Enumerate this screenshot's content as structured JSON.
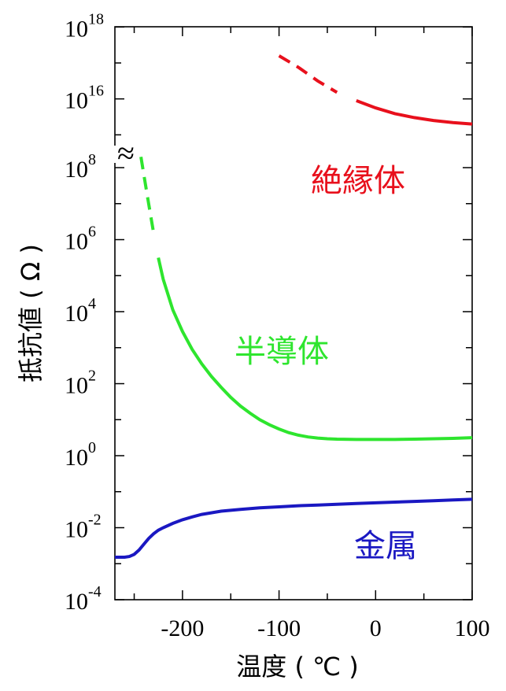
{
  "chart_data": {
    "type": "line",
    "title": "",
    "xlabel": "温度 ( ℃ )",
    "ylabel": "抵抗値 ( Ω )",
    "xlim": [
      -270,
      100
    ],
    "y_scale": "log",
    "x_ticks": [
      -200,
      -100,
      0,
      100
    ],
    "x_tick_labels": [
      "-200",
      "-100",
      "0",
      "100"
    ],
    "y_tick_exponents": [
      -4,
      -2,
      0,
      2,
      4,
      6,
      8,
      16,
      18
    ],
    "y_tick_base": "10",
    "y_axis_break": "≈",
    "grid": false,
    "series": [
      {
        "name": "絶縁体",
        "color": "#e8101c",
        "x": [
          -100,
          -80,
          -60,
          -40,
          -20,
          0,
          20,
          40,
          60,
          80,
          100
        ],
        "log10_y": [
          17.2,
          16.88,
          16.5,
          16.18,
          15.95,
          15.75,
          15.59,
          15.48,
          15.4,
          15.34,
          15.3
        ],
        "dashed_segment": [
          -100,
          -35
        ]
      },
      {
        "name": "半導体",
        "color": "#2ee52e",
        "x": [
          -243,
          -240,
          -235,
          -230,
          -225,
          -220,
          -210,
          -200,
          -190,
          -180,
          -170,
          -160,
          -150,
          -140,
          -130,
          -120,
          -110,
          -100,
          -90,
          -80,
          -70,
          -60,
          -50,
          -40,
          -20,
          0,
          20,
          40,
          60,
          80,
          100
        ],
        "log10_y": [
          8.3,
          7.8,
          7.0,
          6.2,
          5.5,
          4.9,
          4.05,
          3.45,
          2.95,
          2.55,
          2.2,
          1.9,
          1.62,
          1.38,
          1.18,
          1.0,
          0.86,
          0.74,
          0.64,
          0.57,
          0.52,
          0.49,
          0.47,
          0.46,
          0.45,
          0.45,
          0.45,
          0.46,
          0.47,
          0.48,
          0.5
        ],
        "dashed_segment": [
          -243,
          -228
        ]
      },
      {
        "name": "金属",
        "color": "#1a18c2",
        "x": [
          -270,
          -260,
          -255,
          -250,
          -245,
          -240,
          -235,
          -230,
          -225,
          -220,
          -210,
          -200,
          -190,
          -180,
          -160,
          -140,
          -120,
          -100,
          -80,
          -60,
          -40,
          -20,
          0,
          20,
          40,
          60,
          80,
          100
        ],
        "log10_y": [
          -2.82,
          -2.82,
          -2.8,
          -2.74,
          -2.62,
          -2.46,
          -2.3,
          -2.17,
          -2.07,
          -2.0,
          -1.88,
          -1.78,
          -1.7,
          -1.63,
          -1.54,
          -1.49,
          -1.45,
          -1.42,
          -1.39,
          -1.37,
          -1.35,
          -1.33,
          -1.31,
          -1.29,
          -1.27,
          -1.25,
          -1.23,
          -1.21
        ]
      }
    ],
    "annotations": [
      {
        "text": "絶縁体",
        "color": "#e8101c"
      },
      {
        "text": "半導体",
        "color": "#2ee52e"
      },
      {
        "text": "金属",
        "color": "#1a18c2"
      }
    ]
  }
}
